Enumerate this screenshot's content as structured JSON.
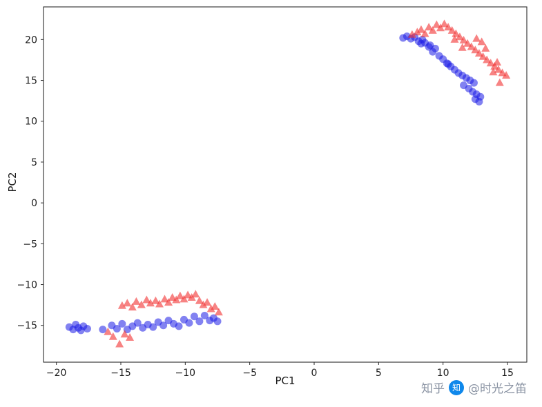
{
  "figure": {
    "background": "#ffffff"
  },
  "chart_data": {
    "type": "scatter",
    "title": "",
    "xlabel": "PC1",
    "ylabel": "PC2",
    "xlim": [
      -21,
      16.5
    ],
    "ylim": [
      -19.5,
      24
    ],
    "x_ticks": [
      -20,
      -15,
      -10,
      -5,
      0,
      5,
      10,
      15
    ],
    "y_ticks": [
      -15,
      -10,
      -5,
      0,
      5,
      10,
      15,
      20
    ],
    "grid": false,
    "legend": "none",
    "series": [
      {
        "name": "class-blue-circles",
        "marker": "circle",
        "color": "#1b1be6",
        "opacity": 0.55,
        "points": [
          [
            -19.0,
            -15.2
          ],
          [
            -18.7,
            -15.5
          ],
          [
            -18.5,
            -14.9
          ],
          [
            -18.3,
            -15.3
          ],
          [
            -18.1,
            -15.6
          ],
          [
            -17.9,
            -15.1
          ],
          [
            -17.6,
            -15.4
          ],
          [
            -16.4,
            -15.5
          ],
          [
            -15.7,
            -15.0
          ],
          [
            -15.3,
            -15.4
          ],
          [
            -14.9,
            -14.8
          ],
          [
            -14.5,
            -15.5
          ],
          [
            -14.1,
            -15.1
          ],
          [
            -13.7,
            -14.7
          ],
          [
            -13.3,
            -15.3
          ],
          [
            -12.9,
            -14.9
          ],
          [
            -12.5,
            -15.2
          ],
          [
            -12.1,
            -14.6
          ],
          [
            -11.7,
            -15.0
          ],
          [
            -11.3,
            -14.4
          ],
          [
            -10.9,
            -14.8
          ],
          [
            -10.5,
            -15.1
          ],
          [
            -10.1,
            -14.3
          ],
          [
            -9.7,
            -14.7
          ],
          [
            -9.3,
            -13.9
          ],
          [
            -8.9,
            -14.5
          ],
          [
            -8.5,
            -13.8
          ],
          [
            -8.1,
            -14.4
          ],
          [
            -7.8,
            -14.1
          ],
          [
            -7.5,
            -14.5
          ],
          [
            6.9,
            20.2
          ],
          [
            7.2,
            20.4
          ],
          [
            7.5,
            20.1
          ],
          [
            7.8,
            20.3
          ],
          [
            8.1,
            19.8
          ],
          [
            8.4,
            20.0
          ],
          [
            8.6,
            19.6
          ],
          [
            8.9,
            19.1
          ],
          [
            9.2,
            18.5
          ],
          [
            9.4,
            18.9
          ],
          [
            9.7,
            18.0
          ],
          [
            10.0,
            17.6
          ],
          [
            10.3,
            17.1
          ],
          [
            10.6,
            16.7
          ],
          [
            10.9,
            16.3
          ],
          [
            11.2,
            15.9
          ],
          [
            11.5,
            15.6
          ],
          [
            11.8,
            15.3
          ],
          [
            12.1,
            15.0
          ],
          [
            12.4,
            14.7
          ],
          [
            12.0,
            14.0
          ],
          [
            12.3,
            13.6
          ],
          [
            12.6,
            13.3
          ],
          [
            12.9,
            13.0
          ],
          [
            12.5,
            12.7
          ],
          [
            12.8,
            12.4
          ],
          [
            11.6,
            14.4
          ],
          [
            10.4,
            17.0
          ],
          [
            9.0,
            19.3
          ],
          [
            8.3,
            19.5
          ]
        ]
      },
      {
        "name": "class-red-triangles",
        "marker": "triangle",
        "color": "#f23030",
        "opacity": 0.6,
        "points": [
          [
            -16.0,
            -15.8
          ],
          [
            -15.6,
            -16.4
          ],
          [
            -15.1,
            -17.3
          ],
          [
            -14.7,
            -16.1
          ],
          [
            -14.3,
            -16.5
          ],
          [
            -14.9,
            -12.6
          ],
          [
            -14.5,
            -12.3
          ],
          [
            -14.1,
            -12.8
          ],
          [
            -13.8,
            -12.1
          ],
          [
            -13.4,
            -12.5
          ],
          [
            -13.0,
            -11.9
          ],
          [
            -12.7,
            -12.3
          ],
          [
            -12.3,
            -12.0
          ],
          [
            -12.0,
            -12.4
          ],
          [
            -11.6,
            -11.8
          ],
          [
            -11.3,
            -12.2
          ],
          [
            -11.0,
            -11.6
          ],
          [
            -10.7,
            -11.9
          ],
          [
            -10.4,
            -11.4
          ],
          [
            -10.1,
            -11.8
          ],
          [
            -9.8,
            -11.3
          ],
          [
            -9.5,
            -11.6
          ],
          [
            -9.2,
            -11.2
          ],
          [
            -8.9,
            -12.0
          ],
          [
            -8.6,
            -12.5
          ],
          [
            -8.3,
            -12.2
          ],
          [
            -8.0,
            -13.0
          ],
          [
            -7.7,
            -12.7
          ],
          [
            -7.4,
            -13.4
          ],
          [
            7.6,
            20.6
          ],
          [
            8.0,
            20.9
          ],
          [
            8.3,
            21.2
          ],
          [
            8.6,
            20.7
          ],
          [
            8.9,
            21.5
          ],
          [
            9.2,
            21.1
          ],
          [
            9.5,
            21.8
          ],
          [
            9.8,
            21.4
          ],
          [
            10.1,
            21.9
          ],
          [
            10.4,
            21.5
          ],
          [
            10.7,
            21.1
          ],
          [
            11.0,
            20.7
          ],
          [
            11.3,
            20.3
          ],
          [
            11.6,
            19.9
          ],
          [
            11.9,
            19.5
          ],
          [
            12.2,
            19.1
          ],
          [
            12.5,
            18.7
          ],
          [
            12.8,
            18.3
          ],
          [
            13.1,
            17.9
          ],
          [
            13.4,
            17.5
          ],
          [
            13.7,
            17.1
          ],
          [
            14.0,
            16.7
          ],
          [
            14.3,
            16.3
          ],
          [
            14.6,
            15.9
          ],
          [
            14.9,
            15.6
          ],
          [
            13.0,
            19.7
          ],
          [
            12.6,
            20.1
          ],
          [
            13.9,
            16.0
          ],
          [
            14.2,
            17.2
          ],
          [
            13.3,
            18.9
          ],
          [
            10.9,
            20.0
          ],
          [
            11.5,
            19.0
          ],
          [
            14.4,
            14.7
          ]
        ]
      }
    ]
  },
  "watermark": {
    "prefix": "知乎",
    "handle": "@时光之笛",
    "logo_glyph": "知",
    "logo_color": "#0f88eb",
    "text_color": "#8a93a3"
  }
}
